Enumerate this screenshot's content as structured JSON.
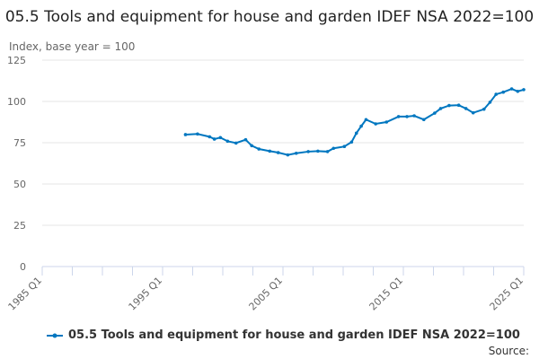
{
  "chart_data": {
    "type": "line",
    "title": "05.5 Tools and equipment for house and garden IDEF NSA 2022=100",
    "ylabel": "Index, base year = 100",
    "xlabel": "",
    "ylim": [
      0,
      125
    ],
    "yticks": [
      0,
      25,
      50,
      75,
      100,
      125
    ],
    "xlim": [
      1985,
      2025
    ],
    "xtick_labels": [
      {
        "x": 1985,
        "label": "1985 Q1"
      },
      {
        "x": 1995,
        "label": "1995 Q1"
      },
      {
        "x": 2005,
        "label": "2005 Q1"
      },
      {
        "x": 2015,
        "label": "2015 Q1"
      },
      {
        "x": 2025,
        "label": "2025 Q1"
      }
    ],
    "grid": true,
    "legend_position": "bottom",
    "series": [
      {
        "name": "05.5 Tools and equipment for house and garden IDEF NSA 2022=100",
        "color": "#0077c0",
        "x": [
          1996.9,
          1997.9,
          1998.9,
          1999.3,
          1999.8,
          2000.4,
          2001.1,
          2001.9,
          2002.4,
          2003.0,
          2003.9,
          2004.6,
          2005.4,
          2006.1,
          2007.1,
          2007.9,
          2008.7,
          2009.2,
          2010.1,
          2010.7,
          2011.1,
          2011.5,
          2011.9,
          2012.7,
          2013.6,
          2014.6,
          2015.3,
          2015.9,
          2016.7,
          2017.6,
          2018.1,
          2018.8,
          2019.6,
          2020.2,
          2020.8,
          2021.7,
          2022.2,
          2022.7,
          2023.3,
          2024.0,
          2024.5,
          2025.0
        ],
        "values": [
          79.9,
          80.3,
          78.6,
          77.2,
          78.1,
          75.9,
          74.8,
          76.8,
          73.2,
          71.2,
          69.9,
          69.0,
          67.6,
          68.6,
          69.6,
          69.9,
          69.6,
          71.6,
          72.7,
          75.4,
          80.8,
          85.0,
          89.0,
          86.4,
          87.5,
          90.8,
          90.8,
          91.3,
          89.0,
          92.9,
          95.7,
          97.5,
          97.7,
          95.7,
          93.1,
          95.3,
          99.5,
          104.3,
          105.6,
          107.6,
          106.1,
          107.1
        ]
      }
    ]
  },
  "source_label": "Source:"
}
